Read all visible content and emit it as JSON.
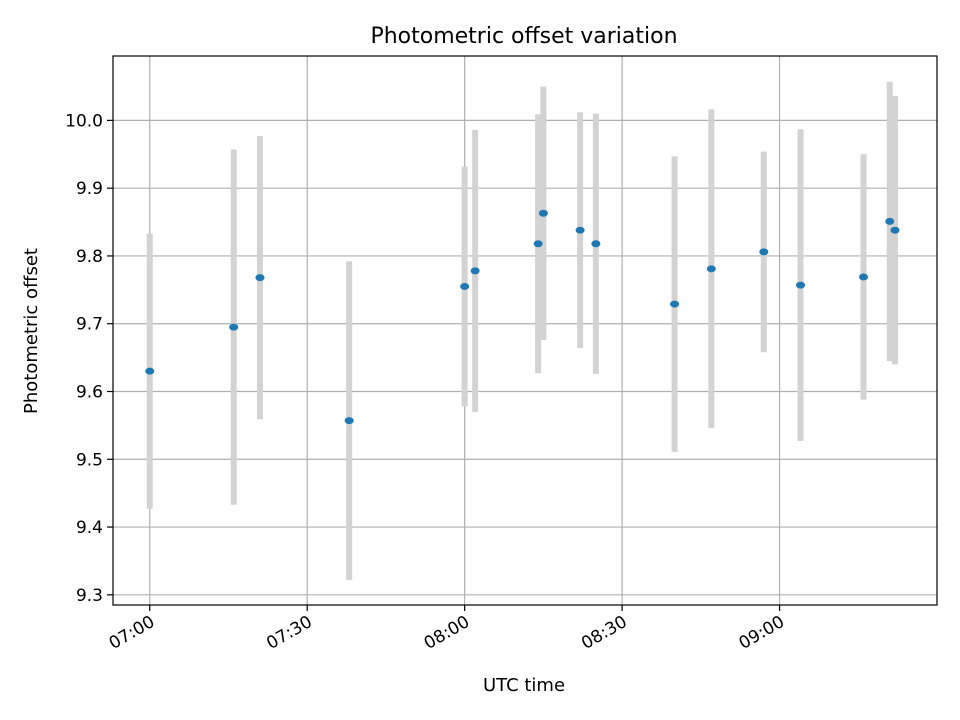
{
  "chart_data": {
    "type": "scatter",
    "title": "Photometric offset variation",
    "xlabel": "UTC time",
    "ylabel": "Photometric offset",
    "x_axis_type": "time",
    "xlim": [
      "06:53",
      "09:30"
    ],
    "ylim": [
      9.285,
      10.095
    ],
    "grid": true,
    "legend": "none",
    "x_ticks": [
      "07:00",
      "07:30",
      "08:00",
      "08:30",
      "09:00"
    ],
    "y_ticks": [
      "9.3",
      "9.4",
      "9.5",
      "9.6",
      "9.7",
      "9.8",
      "9.9",
      "10.0"
    ],
    "colors": {
      "point": "#1f77b4",
      "error_bar": "#d3d3d3",
      "grid": "#b0b0b0",
      "frame": "#000000"
    },
    "series": [
      {
        "points": [
          {
            "x": "07:00",
            "y": 9.63,
            "err": 0.203
          },
          {
            "x": "07:16",
            "y": 9.695,
            "err": 0.262
          },
          {
            "x": "07:21",
            "y": 9.768,
            "err": 0.209
          },
          {
            "x": "07:38",
            "y": 9.557,
            "err": 0.235
          },
          {
            "x": "08:00",
            "y": 9.755,
            "err": 0.177
          },
          {
            "x": "08:02",
            "y": 9.778,
            "err": 0.208
          },
          {
            "x": "08:14",
            "y": 9.818,
            "err": 0.191
          },
          {
            "x": "08:15",
            "y": 9.863,
            "err": 0.187
          },
          {
            "x": "08:22",
            "y": 9.838,
            "err": 0.174
          },
          {
            "x": "08:25",
            "y": 9.818,
            "err": 0.192
          },
          {
            "x": "08:40",
            "y": 9.729,
            "err": 0.218
          },
          {
            "x": "08:47",
            "y": 9.781,
            "err": 0.235
          },
          {
            "x": "08:57",
            "y": 9.806,
            "err": 0.148
          },
          {
            "x": "09:04",
            "y": 9.757,
            "err": 0.23
          },
          {
            "x": "09:16",
            "y": 9.769,
            "err": 0.181
          },
          {
            "x": "09:21",
            "y": 9.851,
            "err": 0.206
          },
          {
            "x": "09:22",
            "y": 9.838,
            "err": 0.198
          }
        ]
      }
    ]
  }
}
